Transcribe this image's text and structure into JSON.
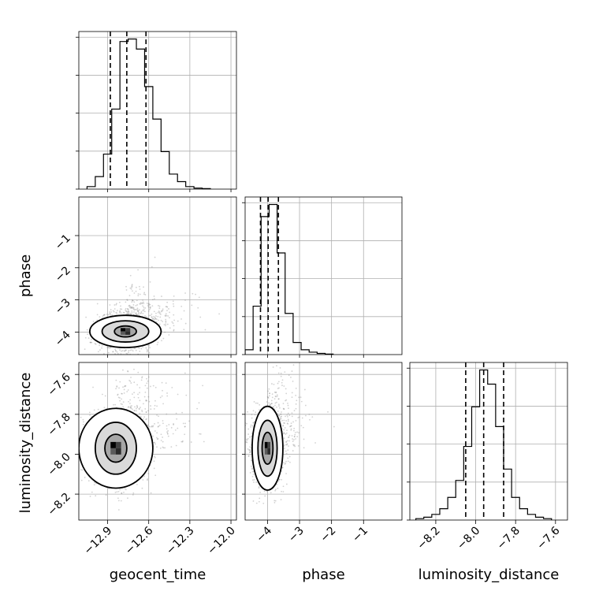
{
  "chart_data": {
    "type": "corner",
    "grid": true,
    "params": [
      "geocent_time",
      "phase",
      "luminosity_distance"
    ],
    "axis_labels": {
      "geocent_time": "geocent_time",
      "phase": "phase",
      "luminosity_distance": "luminosity_distance"
    },
    "ranges": {
      "geocent_time": [
        -13.11,
        -11.96
      ],
      "phase": [
        -4.7,
        0.2
      ],
      "luminosity_distance": [
        -8.33,
        -7.54
      ]
    },
    "ticks": {
      "geocent_time": [
        -12.9,
        -12.6,
        -12.3,
        -12.0
      ],
      "phase": [
        -4,
        -3,
        -2,
        -1
      ],
      "luminosity_distance": [
        -8.2,
        -8.0,
        -7.8,
        -7.6
      ]
    },
    "tick_labels": {
      "geocent_time": [
        "−12.9",
        "−12.6",
        "−12.3",
        "−12.0"
      ],
      "phase": [
        "−4",
        "−3",
        "−2",
        "−1"
      ],
      "luminosity_distance": [
        "−8.2",
        "−8.0",
        "−7.8",
        "−7.6"
      ]
    },
    "histograms": {
      "geocent_time": {
        "bin_edges": [
          -13.05,
          -12.99,
          -12.93,
          -12.87,
          -12.81,
          -12.75,
          -12.69,
          -12.63,
          -12.57,
          -12.51,
          -12.45,
          -12.39,
          -12.33,
          -12.27,
          -12.21,
          -12.15
        ],
        "counts": [
          1,
          5,
          14,
          32,
          59,
          60,
          56,
          41,
          28,
          15,
          6,
          3,
          1,
          0.4,
          0.2
        ],
        "quantiles": [
          -12.88,
          -12.76,
          -12.62
        ]
      },
      "phase": {
        "bin_edges": [
          -4.7,
          -4.45,
          -4.2,
          -3.95,
          -3.7,
          -3.45,
          -3.2,
          -2.95,
          -2.7,
          -2.45,
          -2.2,
          -1.95
        ],
        "counts": [
          2,
          20,
          57,
          62,
          42,
          17,
          5,
          2,
          1,
          0.5,
          0.2
        ],
        "quantiles": [
          -4.22,
          -3.98,
          -3.66
        ]
      },
      "luminosity_distance": {
        "bin_edges": [
          -8.3,
          -8.26,
          -8.22,
          -8.18,
          -8.14,
          -8.1,
          -8.06,
          -8.02,
          -7.98,
          -7.94,
          -7.9,
          -7.86,
          -7.82,
          -7.78,
          -7.74,
          -7.7,
          -7.66,
          -7.62
        ],
        "counts": [
          0.5,
          1,
          2,
          4,
          8,
          14,
          26,
          40,
          53,
          48,
          33,
          18,
          8,
          4,
          2,
          1,
          0.5
        ],
        "quantiles": [
          -8.05,
          -7.96,
          -7.86
        ]
      }
    },
    "panels_2d": [
      {
        "x": "geocent_time",
        "y": "phase",
        "center": [
          -12.77,
          -3.98
        ],
        "sigma": [
          0.1,
          0.3
        ],
        "contours": [
          {
            "level": 1,
            "sx": 0.08,
            "sy": 0.17
          },
          {
            "level": 2,
            "sx": 0.17,
            "sy": 0.33
          },
          {
            "level": 3,
            "sx": 0.26,
            "sy": 0.5
          }
        ]
      },
      {
        "x": "geocent_time",
        "y": "luminosity_distance",
        "center": [
          -12.84,
          -7.97
        ],
        "sigma": [
          0.11,
          0.09
        ],
        "contours": [
          {
            "level": 1,
            "sx": 0.08,
            "sy": 0.07
          },
          {
            "level": 2,
            "sx": 0.15,
            "sy": 0.13
          },
          {
            "level": 3,
            "sx": 0.27,
            "sy": 0.2
          }
        ]
      },
      {
        "x": "phase",
        "y": "luminosity_distance",
        "center": [
          -4.0,
          -7.97
        ],
        "sigma": [
          0.25,
          0.09
        ],
        "contours": [
          {
            "level": 1,
            "sx": 0.17,
            "sy": 0.08
          },
          {
            "level": 2,
            "sx": 0.3,
            "sy": 0.14
          },
          {
            "level": 3,
            "sx": 0.48,
            "sy": 0.21
          }
        ]
      }
    ]
  }
}
